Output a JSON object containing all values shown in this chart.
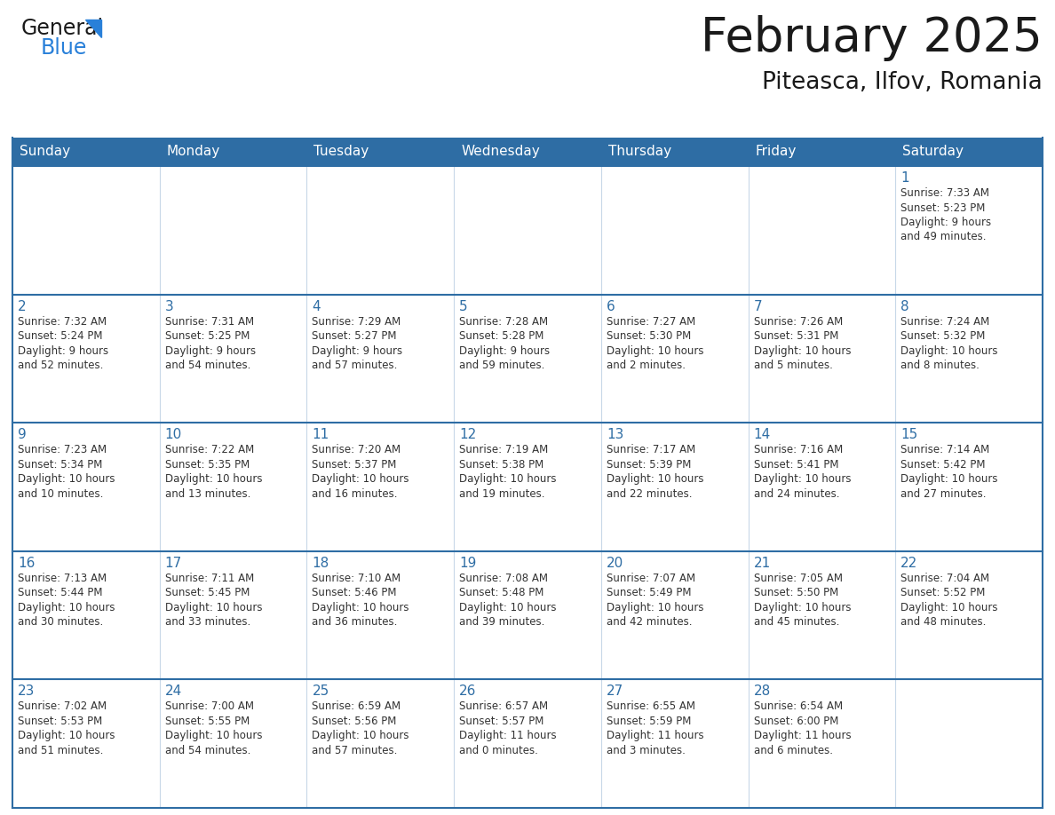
{
  "title": "February 2025",
  "subtitle": "Piteasca, Ilfov, Romania",
  "header_bg": "#2e6da4",
  "header_text_color": "#ffffff",
  "border_color": "#2e6da4",
  "cell_border_color": "#5a9fd4",
  "day_names": [
    "Sunday",
    "Monday",
    "Tuesday",
    "Wednesday",
    "Thursday",
    "Friday",
    "Saturday"
  ],
  "title_color": "#1a1a1a",
  "subtitle_color": "#1a1a1a",
  "day_num_color": "#2e6da4",
  "info_color": "#333333",
  "logo_general_color": "#1a1a1a",
  "logo_blue_color": "#2980d9",
  "logo_triangle_color": "#2980d9",
  "weeks": [
    [
      {
        "day": "",
        "info": ""
      },
      {
        "day": "",
        "info": ""
      },
      {
        "day": "",
        "info": ""
      },
      {
        "day": "",
        "info": ""
      },
      {
        "day": "",
        "info": ""
      },
      {
        "day": "",
        "info": ""
      },
      {
        "day": "1",
        "info": "Sunrise: 7:33 AM\nSunset: 5:23 PM\nDaylight: 9 hours\nand 49 minutes."
      }
    ],
    [
      {
        "day": "2",
        "info": "Sunrise: 7:32 AM\nSunset: 5:24 PM\nDaylight: 9 hours\nand 52 minutes."
      },
      {
        "day": "3",
        "info": "Sunrise: 7:31 AM\nSunset: 5:25 PM\nDaylight: 9 hours\nand 54 minutes."
      },
      {
        "day": "4",
        "info": "Sunrise: 7:29 AM\nSunset: 5:27 PM\nDaylight: 9 hours\nand 57 minutes."
      },
      {
        "day": "5",
        "info": "Sunrise: 7:28 AM\nSunset: 5:28 PM\nDaylight: 9 hours\nand 59 minutes."
      },
      {
        "day": "6",
        "info": "Sunrise: 7:27 AM\nSunset: 5:30 PM\nDaylight: 10 hours\nand 2 minutes."
      },
      {
        "day": "7",
        "info": "Sunrise: 7:26 AM\nSunset: 5:31 PM\nDaylight: 10 hours\nand 5 minutes."
      },
      {
        "day": "8",
        "info": "Sunrise: 7:24 AM\nSunset: 5:32 PM\nDaylight: 10 hours\nand 8 minutes."
      }
    ],
    [
      {
        "day": "9",
        "info": "Sunrise: 7:23 AM\nSunset: 5:34 PM\nDaylight: 10 hours\nand 10 minutes."
      },
      {
        "day": "10",
        "info": "Sunrise: 7:22 AM\nSunset: 5:35 PM\nDaylight: 10 hours\nand 13 minutes."
      },
      {
        "day": "11",
        "info": "Sunrise: 7:20 AM\nSunset: 5:37 PM\nDaylight: 10 hours\nand 16 minutes."
      },
      {
        "day": "12",
        "info": "Sunrise: 7:19 AM\nSunset: 5:38 PM\nDaylight: 10 hours\nand 19 minutes."
      },
      {
        "day": "13",
        "info": "Sunrise: 7:17 AM\nSunset: 5:39 PM\nDaylight: 10 hours\nand 22 minutes."
      },
      {
        "day": "14",
        "info": "Sunrise: 7:16 AM\nSunset: 5:41 PM\nDaylight: 10 hours\nand 24 minutes."
      },
      {
        "day": "15",
        "info": "Sunrise: 7:14 AM\nSunset: 5:42 PM\nDaylight: 10 hours\nand 27 minutes."
      }
    ],
    [
      {
        "day": "16",
        "info": "Sunrise: 7:13 AM\nSunset: 5:44 PM\nDaylight: 10 hours\nand 30 minutes."
      },
      {
        "day": "17",
        "info": "Sunrise: 7:11 AM\nSunset: 5:45 PM\nDaylight: 10 hours\nand 33 minutes."
      },
      {
        "day": "18",
        "info": "Sunrise: 7:10 AM\nSunset: 5:46 PM\nDaylight: 10 hours\nand 36 minutes."
      },
      {
        "day": "19",
        "info": "Sunrise: 7:08 AM\nSunset: 5:48 PM\nDaylight: 10 hours\nand 39 minutes."
      },
      {
        "day": "20",
        "info": "Sunrise: 7:07 AM\nSunset: 5:49 PM\nDaylight: 10 hours\nand 42 minutes."
      },
      {
        "day": "21",
        "info": "Sunrise: 7:05 AM\nSunset: 5:50 PM\nDaylight: 10 hours\nand 45 minutes."
      },
      {
        "day": "22",
        "info": "Sunrise: 7:04 AM\nSunset: 5:52 PM\nDaylight: 10 hours\nand 48 minutes."
      }
    ],
    [
      {
        "day": "23",
        "info": "Sunrise: 7:02 AM\nSunset: 5:53 PM\nDaylight: 10 hours\nand 51 minutes."
      },
      {
        "day": "24",
        "info": "Sunrise: 7:00 AM\nSunset: 5:55 PM\nDaylight: 10 hours\nand 54 minutes."
      },
      {
        "day": "25",
        "info": "Sunrise: 6:59 AM\nSunset: 5:56 PM\nDaylight: 10 hours\nand 57 minutes."
      },
      {
        "day": "26",
        "info": "Sunrise: 6:57 AM\nSunset: 5:57 PM\nDaylight: 11 hours\nand 0 minutes."
      },
      {
        "day": "27",
        "info": "Sunrise: 6:55 AM\nSunset: 5:59 PM\nDaylight: 11 hours\nand 3 minutes."
      },
      {
        "day": "28",
        "info": "Sunrise: 6:54 AM\nSunset: 6:00 PM\nDaylight: 11 hours\nand 6 minutes."
      },
      {
        "day": "",
        "info": ""
      }
    ]
  ]
}
